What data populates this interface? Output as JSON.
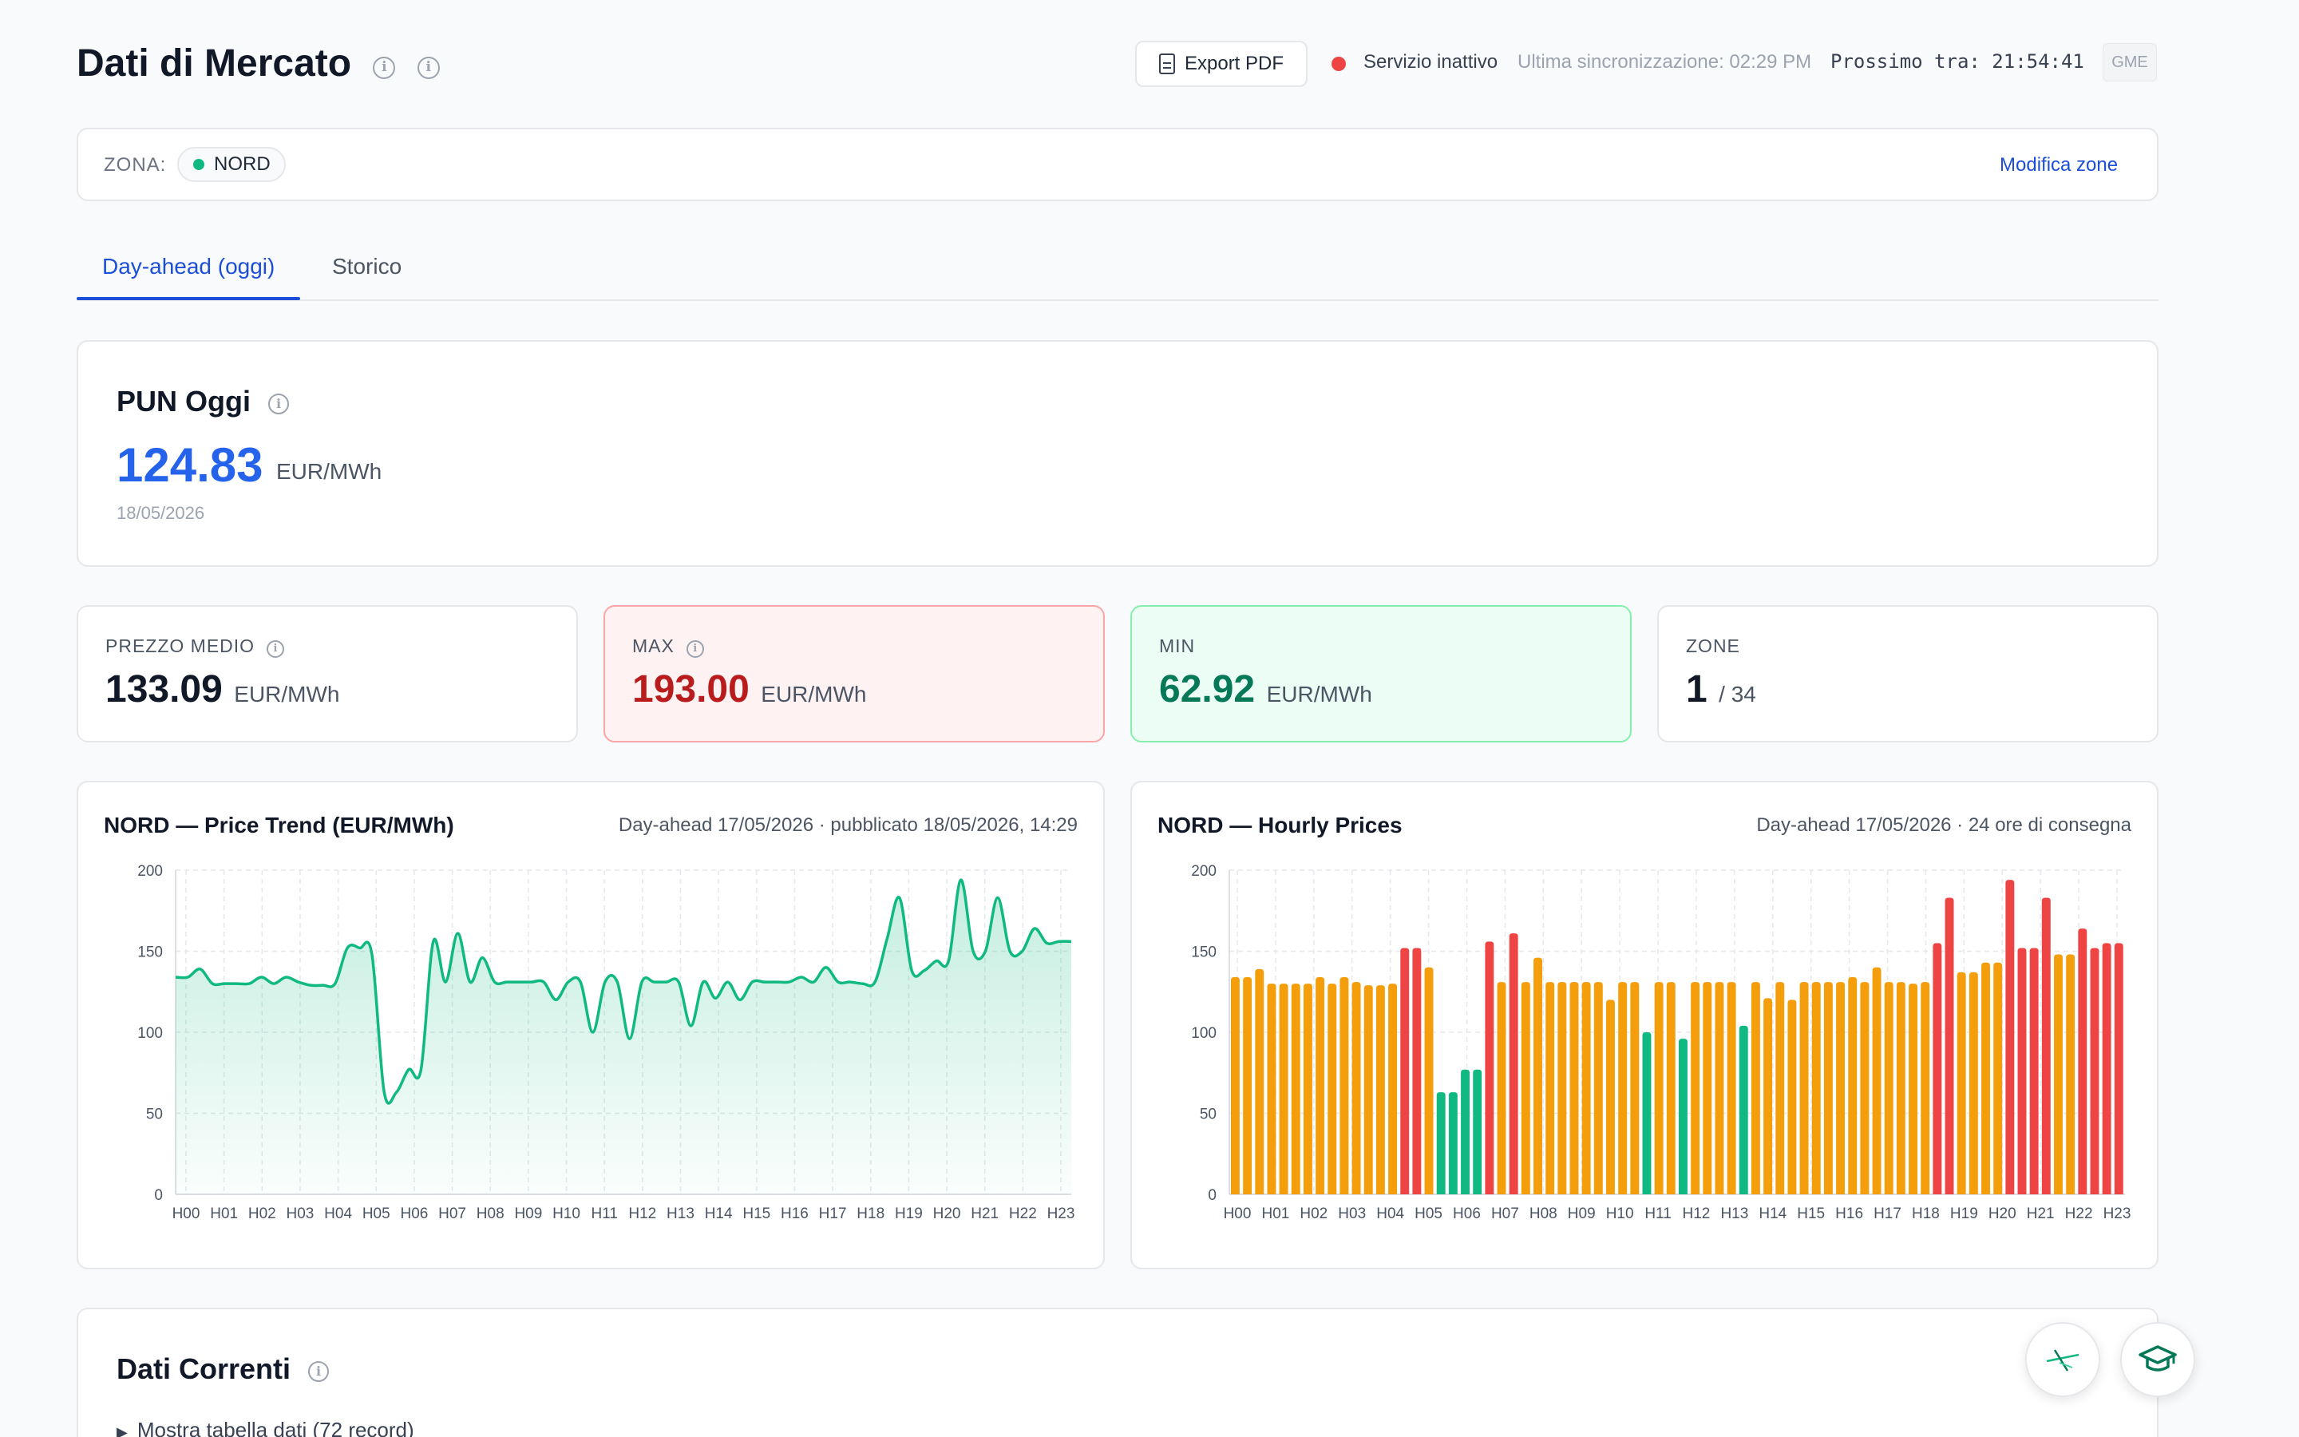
{
  "header": {
    "title": "Dati di Mercato",
    "export_label": "Export PDF",
    "status": "Servizio inattivo",
    "last_sync": "Ultima sincronizzazione: 02:29 PM",
    "next": "Prossimo tra: 21:54:41",
    "source_badge": "GME",
    "status_color": "#ef4444"
  },
  "zone_bar": {
    "label": "ZONA:",
    "selected_zone": "NORD",
    "modify_label": "Modifica zone"
  },
  "tabs": [
    {
      "label": "Day-ahead (oggi)",
      "active": true
    },
    {
      "label": "Storico",
      "active": false
    }
  ],
  "pun": {
    "title": "PUN Oggi",
    "value": "124.83",
    "unit": "EUR/MWh",
    "date": "18/05/2026"
  },
  "stats": {
    "avg": {
      "label": "PREZZO MEDIO",
      "value": "133.09",
      "unit": "EUR/MWh"
    },
    "max": {
      "label": "MAX",
      "value": "193.00",
      "unit": "EUR/MWh"
    },
    "min": {
      "label": "MIN",
      "value": "62.92",
      "unit": "EUR/MWh"
    },
    "zones": {
      "label": "ZONE",
      "value": "1",
      "total": "/ 34"
    }
  },
  "charts": {
    "trend": {
      "title": "NORD — Price Trend (EUR/MWh)",
      "subtitle": "Day-ahead 17/05/2026 · pubblicato 18/05/2026, 14:29"
    },
    "hourly": {
      "title": "NORD — Hourly Prices",
      "subtitle": "Day-ahead 17/05/2026 · 24 ore di consegna"
    }
  },
  "chart_data": [
    {
      "type": "line",
      "title": "NORD — Price Trend (EUR/MWh)",
      "ylim": [
        0,
        200
      ],
      "yticks": [
        0,
        50,
        100,
        150,
        200
      ],
      "xtick_labels": [
        "H00",
        "H01",
        "H02",
        "H03",
        "H04",
        "H05",
        "H06",
        "H07",
        "H08",
        "H09",
        "H10",
        "H11",
        "H12",
        "H13",
        "H14",
        "H15",
        "H16",
        "H17",
        "H18",
        "H19",
        "H20",
        "H21",
        "H22",
        "H23"
      ],
      "grid": true,
      "line_color": "#10b981",
      "values": [
        134,
        134,
        139,
        130,
        130,
        130,
        130,
        134,
        130,
        134,
        131,
        129,
        129,
        130,
        152,
        152,
        148,
        63,
        63,
        77,
        77,
        156,
        131,
        161,
        131,
        146,
        131,
        131,
        131,
        131,
        131,
        120,
        131,
        131,
        100,
        131,
        131,
        96,
        131,
        131,
        131,
        131,
        104,
        131,
        121,
        131,
        120,
        131,
        131,
        131,
        131,
        134,
        131,
        140,
        131,
        131,
        130,
        131,
        158,
        183,
        138,
        138,
        144,
        144,
        194,
        150,
        150,
        183,
        150,
        150,
        164,
        155,
        156,
        156
      ]
    },
    {
      "type": "bar",
      "title": "NORD — Hourly Prices",
      "ylim": [
        0,
        200
      ],
      "yticks": [
        0,
        50,
        100,
        150,
        200
      ],
      "xtick_labels": [
        "H00",
        "H01",
        "H02",
        "H03",
        "H04",
        "H05",
        "H06",
        "H07",
        "H08",
        "H09",
        "H10",
        "H11",
        "H12",
        "H13",
        "H14",
        "H15",
        "H16",
        "H17",
        "H18",
        "H19",
        "H20",
        "H21",
        "H22",
        "H23"
      ],
      "grid": true,
      "colors": {
        "high": "#ef4444",
        "mid": "#f59e0b",
        "low": "#10b981"
      },
      "values": [
        134,
        134,
        139,
        130,
        130,
        130,
        130,
        134,
        130,
        134,
        131,
        129,
        129,
        130,
        152,
        152,
        140,
        63,
        63,
        77,
        77,
        156,
        131,
        161,
        131,
        146,
        131,
        131,
        131,
        131,
        131,
        120,
        131,
        131,
        100,
        131,
        131,
        96,
        131,
        131,
        131,
        131,
        104,
        131,
        121,
        131,
        120,
        131,
        131,
        131,
        131,
        134,
        131,
        140,
        131,
        131,
        130,
        131,
        155,
        183,
        137,
        137,
        143,
        143,
        194,
        152,
        152,
        183,
        148,
        148,
        164,
        152,
        155,
        155
      ]
    }
  ],
  "data_section": {
    "title": "Dati Correnti",
    "toggle": "Mostra tabella dati (72 record)"
  }
}
